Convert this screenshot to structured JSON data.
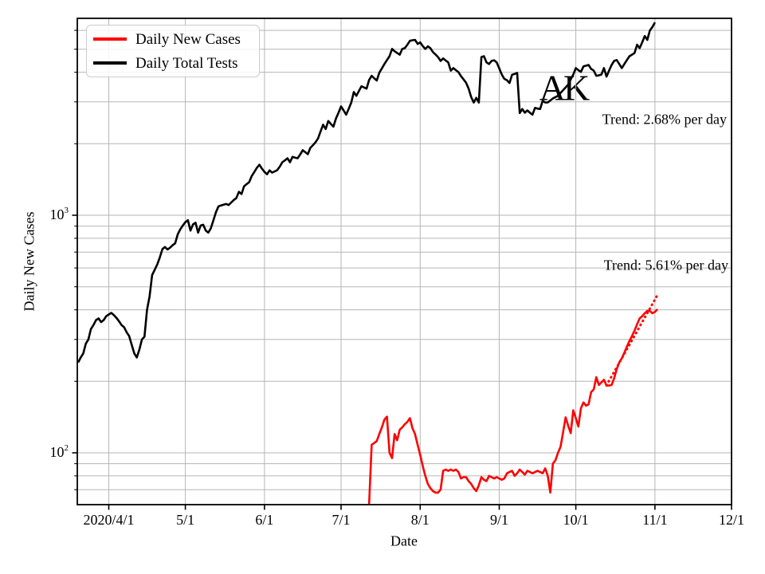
{
  "figure": {
    "background": "#ffffff"
  },
  "colors": {
    "grid": "#b6b6b6",
    "spine": "#000000",
    "red": "#ff0000",
    "black": "#000000",
    "legend_border": "#cccccc"
  },
  "legend": {
    "items": [
      {
        "label": "Daily New Cases",
        "color": "#ff0000"
      },
      {
        "label": "Daily Total Tests",
        "color": "#000000"
      }
    ]
  },
  "chart_data": {
    "type": "line",
    "title": "",
    "xlabel": "Date",
    "ylabel": "Daily New Cases",
    "yscale": "log",
    "ylim": [
      60,
      6900
    ],
    "xlim": [
      "2020/3/15",
      "2020/12/1"
    ],
    "grid": true,
    "legend_position": "upper left",
    "annotations": {
      "state": "AK",
      "trend_tests": "Trend: 2.68% per day",
      "trend_cases": "Trend: 5.61% per day"
    },
    "x_ticks": [
      {
        "date": "2020/4/1",
        "label": "2020/4/1"
      },
      {
        "date": "2020/5/1",
        "label": "5/1"
      },
      {
        "date": "2020/6/1",
        "label": "6/1"
      },
      {
        "date": "2020/7/1",
        "label": "7/1"
      },
      {
        "date": "2020/8/1",
        "label": "8/1"
      },
      {
        "date": "2020/9/1",
        "label": "9/1"
      },
      {
        "date": "2020/10/1",
        "label": "10/1"
      },
      {
        "date": "2020/11/1",
        "label": "11/1"
      },
      {
        "date": "2020/12/1",
        "label": "12/1"
      }
    ],
    "y_major_ticks": [
      {
        "value": 100,
        "base": "10",
        "exp": "2"
      },
      {
        "value": 1000,
        "base": "10",
        "exp": "3"
      }
    ],
    "y_minor_gridlines": [
      70,
      80,
      90,
      200,
      300,
      400,
      500,
      600,
      700,
      800,
      900,
      2000,
      3000,
      4000,
      5000,
      6000
    ],
    "series": [
      {
        "id": "daily-total-tests",
        "name": "Daily Total Tests",
        "color": "#000000",
        "linestyle": "solid",
        "width": 2.6,
        "start": "2020/3/20",
        "values": [
          240,
          252,
          262,
          288,
          300,
          332,
          345,
          362,
          368,
          355,
          362,
          376,
          382,
          388,
          380,
          370,
          358,
          345,
          338,
          322,
          310,
          285,
          262,
          252,
          272,
          300,
          308,
          400,
          455,
          560,
          590,
          622,
          665,
          720,
          735,
          718,
          730,
          748,
          762,
          830,
          872,
          905,
          935,
          953,
          862,
          915,
          930,
          845,
          905,
          912,
          862,
          845,
          882,
          952,
          1030,
          1090,
          1100,
          1108,
          1115,
          1105,
          1132,
          1160,
          1182,
          1255,
          1228,
          1325,
          1352,
          1378,
          1462,
          1520,
          1582,
          1632,
          1572,
          1522,
          1488,
          1545,
          1512,
          1530,
          1548,
          1602,
          1672,
          1702,
          1738,
          1672,
          1762,
          1748,
          1738,
          1802,
          1878,
          1842,
          1808,
          1922,
          1972,
          2028,
          2105,
          2255,
          2405,
          2305,
          2492,
          2422,
          2362,
          2552,
          2702,
          2872,
          2762,
          2652,
          2805,
          2982,
          3302,
          3182,
          3332,
          3492,
          3452,
          3412,
          3712,
          3862,
          3772,
          3692,
          3982,
          4152,
          4332,
          4502,
          4672,
          5012,
          4902,
          4822,
          4742,
          5012,
          5052,
          5222,
          5422,
          5452,
          5472,
          5262,
          5342,
          5152,
          5012,
          5142,
          5052,
          4862,
          4752,
          4632,
          4462,
          4572,
          4482,
          4402,
          4062,
          4162,
          4082,
          4002,
          3852,
          3732,
          3612,
          3412,
          3142,
          2982,
          3122,
          2982,
          4632,
          4672,
          4402,
          4332,
          4462,
          4492,
          4402,
          4152,
          3912,
          3752,
          3702,
          3602,
          3902,
          3932,
          3972,
          2692,
          2802,
          2702,
          2762,
          2702,
          2652,
          2832,
          2812,
          2802,
          3032,
          2982,
          2985,
          3042,
          3102,
          3142,
          3182,
          3272,
          3362,
          3452,
          3552,
          3732,
          3912,
          4162,
          4082,
          4012,
          4232,
          4262,
          4292,
          4132,
          4062,
          3862,
          3882,
          3912,
          4162,
          3832,
          4062,
          4292,
          4462,
          4502,
          4332,
          4162,
          4332,
          4502,
          4672,
          4742,
          4822,
          5222,
          5052,
          5342,
          5682,
          5472,
          5992,
          6200,
          6482
        ]
      },
      {
        "id": "daily-new-cases",
        "name": "Daily New Cases",
        "color": "#ff0000",
        "linestyle": "solid",
        "width": 2.6,
        "start": "2020/7/12",
        "values": [
          61,
          108,
          110,
          112,
          120,
          128,
          138,
          142,
          100,
          95,
          120,
          113,
          125,
          128,
          132,
          135,
          140,
          127,
          120,
          108,
          98,
          88,
          80,
          74,
          71,
          69,
          68,
          68,
          70,
          84,
          85,
          84,
          85,
          84,
          85,
          83,
          78,
          79,
          79,
          76,
          74,
          71,
          69,
          73,
          79,
          77,
          76,
          80,
          79,
          78,
          79,
          78,
          77,
          78,
          82,
          83,
          84,
          80,
          82,
          85,
          83,
          81,
          84,
          83,
          82,
          83,
          84,
          83,
          82,
          86,
          80,
          68,
          90,
          93,
          100,
          106,
          122,
          141,
          130,
          121,
          151,
          140,
          129,
          154,
          163,
          158,
          160,
          180,
          185,
          208,
          193,
          198,
          203,
          192,
          192,
          193,
          206,
          225,
          240,
          250,
          264,
          280,
          296,
          310,
          327,
          348,
          368,
          376,
          387,
          396,
          396,
          387,
          392,
          402
        ]
      },
      {
        "id": "daily-new-cases-trend",
        "name": "Daily New Cases trend fit",
        "color": "#ff0000",
        "linestyle": "dotted",
        "width": 3,
        "start": "2020/10/13",
        "values": [
          192,
          201,
          210,
          219,
          229,
          239,
          250,
          261,
          273,
          285,
          298,
          311,
          325,
          340,
          355,
          371,
          387,
          405,
          423,
          442,
          462
        ]
      }
    ]
  }
}
